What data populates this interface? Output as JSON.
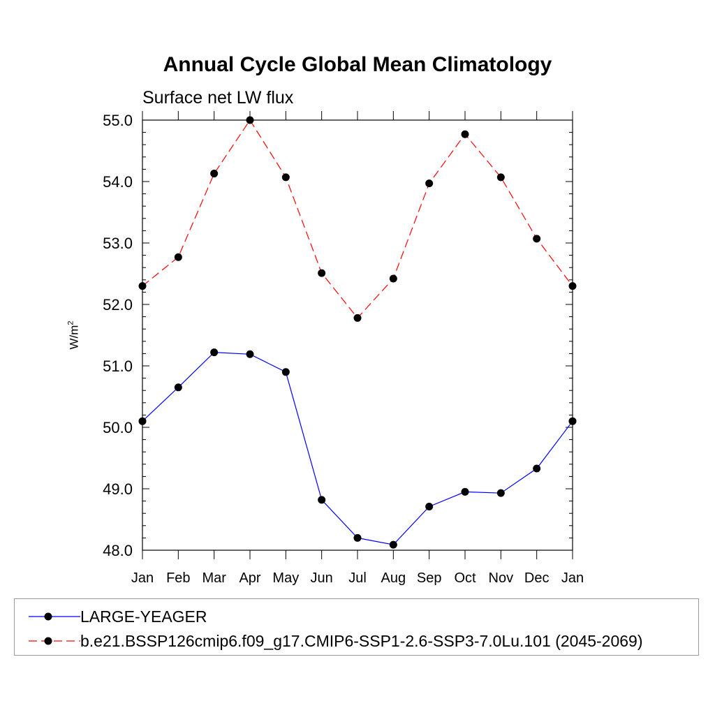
{
  "title": "Annual Cycle Global Mean Climatology",
  "subtitle": "Surface net LW flux",
  "chart_data": {
    "type": "line",
    "title": "Annual Cycle Global Mean Climatology",
    "subtitle": "Surface net LW flux",
    "ylabel": "W/m",
    "ylabel_superscript": "2",
    "xlabel": "",
    "categories": [
      "Jan",
      "Feb",
      "Mar",
      "Apr",
      "May",
      "Jun",
      "Jul",
      "Aug",
      "Sep",
      "Oct",
      "Nov",
      "Dec",
      "Jan"
    ],
    "ylim": [
      48.0,
      55.0
    ],
    "yticks": [
      "48.0",
      "49.0",
      "50.0",
      "51.0",
      "52.0",
      "53.0",
      "54.0",
      "55.0"
    ],
    "grid": false,
    "legend_position": "bottom",
    "series": [
      {
        "name": "LARGE-YEAGER",
        "color": "#0000ff",
        "line_style": "solid",
        "marker": "filled-circle",
        "values": [
          50.1,
          50.65,
          51.22,
          51.19,
          50.9,
          48.82,
          48.2,
          48.09,
          48.71,
          48.95,
          48.93,
          49.33,
          50.1
        ]
      },
      {
        "name": "b.e21.BSSP126cmip6.f09_g17.CMIP6-SSP1-2.6-SSP3-7.0Lu.101 (2045-2069)",
        "color": "#ff0000",
        "line_style": "dashed",
        "marker": "filled-circle",
        "values": [
          52.3,
          52.77,
          54.13,
          55.0,
          54.07,
          52.51,
          51.78,
          52.42,
          53.97,
          54.77,
          54.07,
          53.07,
          52.3
        ]
      }
    ]
  }
}
